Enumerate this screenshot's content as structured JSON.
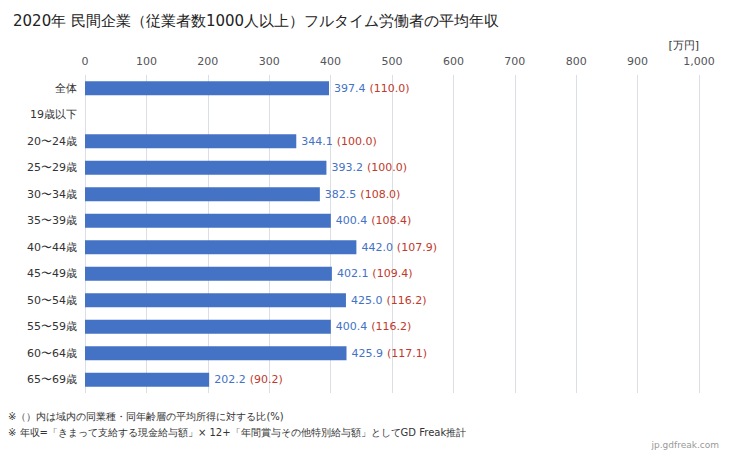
{
  "chart_data": {
    "type": "bar",
    "orientation": "horizontal",
    "title": "2020年 民間企業（従業者数1000人以上）フルタイム労働者の平均年収",
    "xlabel": "[万円]",
    "categories": [
      "全体",
      "19歳以下",
      "20〜24歳",
      "25〜29歳",
      "30〜34歳",
      "35〜39歳",
      "40〜44歳",
      "45〜49歳",
      "50〜54歳",
      "55〜59歳",
      "60〜64歳",
      "65〜69歳"
    ],
    "values": [
      397.4,
      null,
      344.1,
      393.2,
      382.5,
      400.4,
      442.0,
      402.1,
      425.0,
      400.4,
      425.9,
      202.2
    ],
    "value_labels": [
      "397.4",
      null,
      "344.1",
      "393.2",
      "382.5",
      "400.4",
      "442.0",
      "402.1",
      "425.0",
      "400.4",
      "425.9",
      "202.2"
    ],
    "ratios": [
      110.0,
      null,
      100.0,
      100.0,
      108.0,
      108.4,
      107.9,
      109.4,
      116.2,
      116.2,
      117.1,
      90.2
    ],
    "ratio_labels": [
      "(110.0)",
      null,
      "(100.0)",
      "(100.0)",
      "(108.0)",
      "(108.4)",
      "(107.9)",
      "(109.4)",
      "(116.2)",
      "(116.2)",
      "(117.1)",
      "(90.2)"
    ],
    "color": "#4472c4",
    "ratio_color": "#c0392b",
    "data_labels": true,
    "xlim": [
      0,
      1000
    ],
    "xticks": [
      0,
      100,
      200,
      300,
      400,
      500,
      600,
      700,
      800,
      900,
      1000
    ],
    "grid": true,
    "annotations": [
      "※（）内は域内の同業種・同年齢層の平均所得に対する比(%)",
      "※ 年収=「きまって支給する現金給与額」× 12+「年間賞与その他特別給与額」としてGD Freak推計",
      "jp.gdfreak.com"
    ]
  }
}
